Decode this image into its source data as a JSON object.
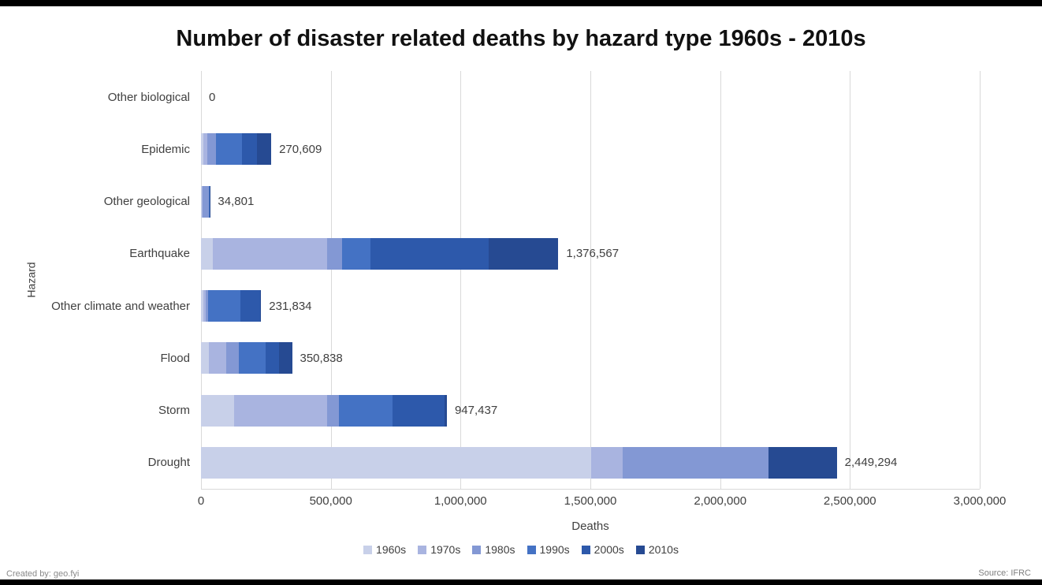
{
  "footer": {
    "created_by": "Created by: geo.fyi",
    "source": "Source: IFRC"
  },
  "chart_data": {
    "type": "bar",
    "orientation": "horizontal",
    "stacked": true,
    "title": "Number of disaster related deaths by hazard type 1960s - 2010s",
    "xlabel": "Deaths",
    "ylabel": "Hazard",
    "xlim": [
      0,
      3000000
    ],
    "grid": true,
    "legend_position": "bottom",
    "x_ticks": [
      0,
      500000,
      1000000,
      1500000,
      2000000,
      2500000,
      3000000
    ],
    "x_tick_labels": [
      "0",
      "500,000",
      "1,000,000",
      "1,500,000",
      "2,000,000",
      "2,500,000",
      "3,000,000"
    ],
    "categories": [
      "Other biological",
      "Epidemic",
      "Other geological",
      "Earthquake",
      "Other climate and weather",
      "Flood",
      "Storm",
      "Drought"
    ],
    "totals": [
      0,
      270609,
      34801,
      1376567,
      231834,
      350838,
      947437,
      2449294
    ],
    "total_labels": [
      "0",
      "270,609",
      "34,801",
      "1,376,567",
      "231,834",
      "350,838",
      "947,437",
      "2,449,294"
    ],
    "series": [
      {
        "name": "1960s",
        "color": "#c8d0e9",
        "values": [
          0,
          9000,
          2000,
          45000,
          9000,
          30000,
          128000,
          1503000
        ]
      },
      {
        "name": "1970s",
        "color": "#a9b4e0",
        "values": [
          0,
          15000,
          4000,
          440000,
          10000,
          67000,
          358000,
          121000
        ]
      },
      {
        "name": "1980s",
        "color": "#8398d4",
        "values": [
          0,
          35000,
          25000,
          60000,
          8000,
          48000,
          46000,
          562000
        ]
      },
      {
        "name": "1990s",
        "color": "#4472c4",
        "values": [
          0,
          100000,
          2000,
          107000,
          125000,
          103000,
          205000,
          0
        ]
      },
      {
        "name": "2000s",
        "color": "#2d59ab",
        "values": [
          0,
          56609,
          1000,
          455000,
          75000,
          52000,
          200000,
          0
        ]
      },
      {
        "name": "2010s",
        "color": "#264a92",
        "values": [
          0,
          55000,
          801,
          269567,
          4834,
          50838,
          10437,
          263294
        ]
      }
    ]
  }
}
